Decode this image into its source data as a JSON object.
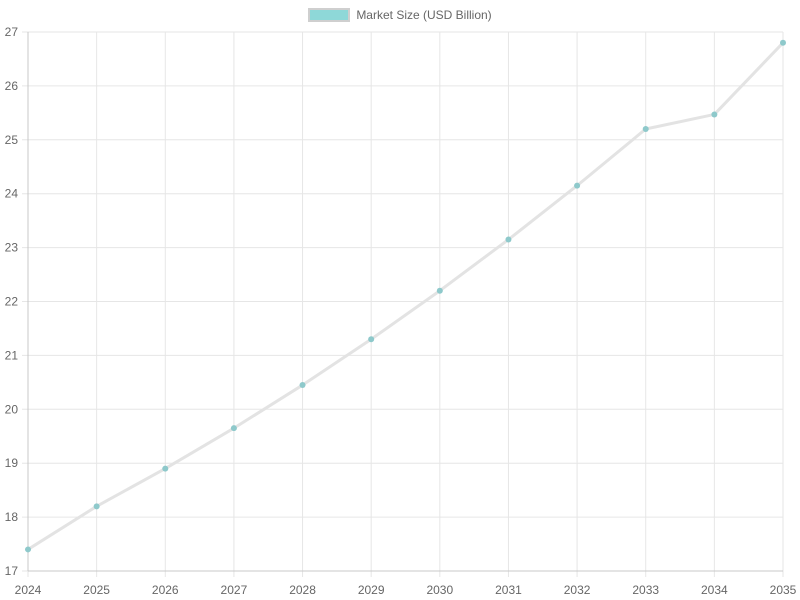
{
  "chart_data": {
    "type": "line",
    "x": [
      2024,
      2025,
      2026,
      2027,
      2028,
      2029,
      2030,
      2031,
      2032,
      2033,
      2034,
      2035
    ],
    "series": [
      {
        "name": "Market Size (USD Billion)",
        "values": [
          17.4,
          18.2,
          18.9,
          19.65,
          20.45,
          21.3,
          22.2,
          23.15,
          24.15,
          25.2,
          25.47,
          26.8
        ]
      }
    ],
    "title": "",
    "xlabel": "",
    "ylabel": "",
    "ylim": [
      17,
      27
    ],
    "yticks": [
      17,
      18,
      19,
      20,
      21,
      22,
      23,
      24,
      25,
      26,
      27
    ],
    "grid": true,
    "legend_position": "top-center"
  },
  "colors": {
    "line": "#e3e3e3",
    "point": "#8ec9cb",
    "legend_fill": "#8ed8d8",
    "legend_border": "#cfcfcf",
    "grid": "#e6e6e6",
    "axis": "#c8c8c8",
    "tick_text": "#666666"
  }
}
